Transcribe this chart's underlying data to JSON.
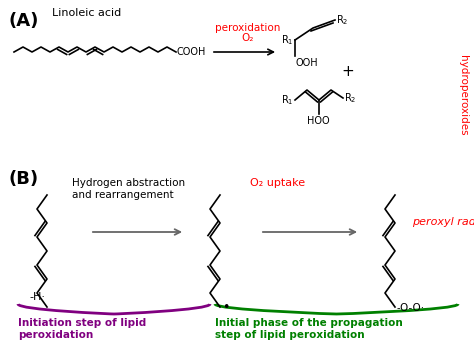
{
  "bg_color": "#ffffff",
  "label_A": "(A)",
  "label_B": "(B)",
  "linoleic_acid_label": "Linoleic acid",
  "peroxidation_line1": "peroxidation",
  "peroxidation_line2": "O₂",
  "hydroperoxides_label": "hydroperoxides",
  "o2_uptake_label": "O₂ uptake",
  "peroxyl_radical_label": "peroxyl radical",
  "hh_label": "Hydrogen abstraction\nand rearrangement",
  "minus_h_label": "-H·",
  "dot_label": "•",
  "ooo_label": "-O-O·",
  "initiation_label": "Initiation step of lipid\nperoxidation",
  "propagation_label": "Initial phase of the propagation\nstep of lipid peroxidation",
  "red": "#ff0000",
  "black": "#000000",
  "purple": "#800080",
  "green": "#008000",
  "gray_arrow": "#666666"
}
